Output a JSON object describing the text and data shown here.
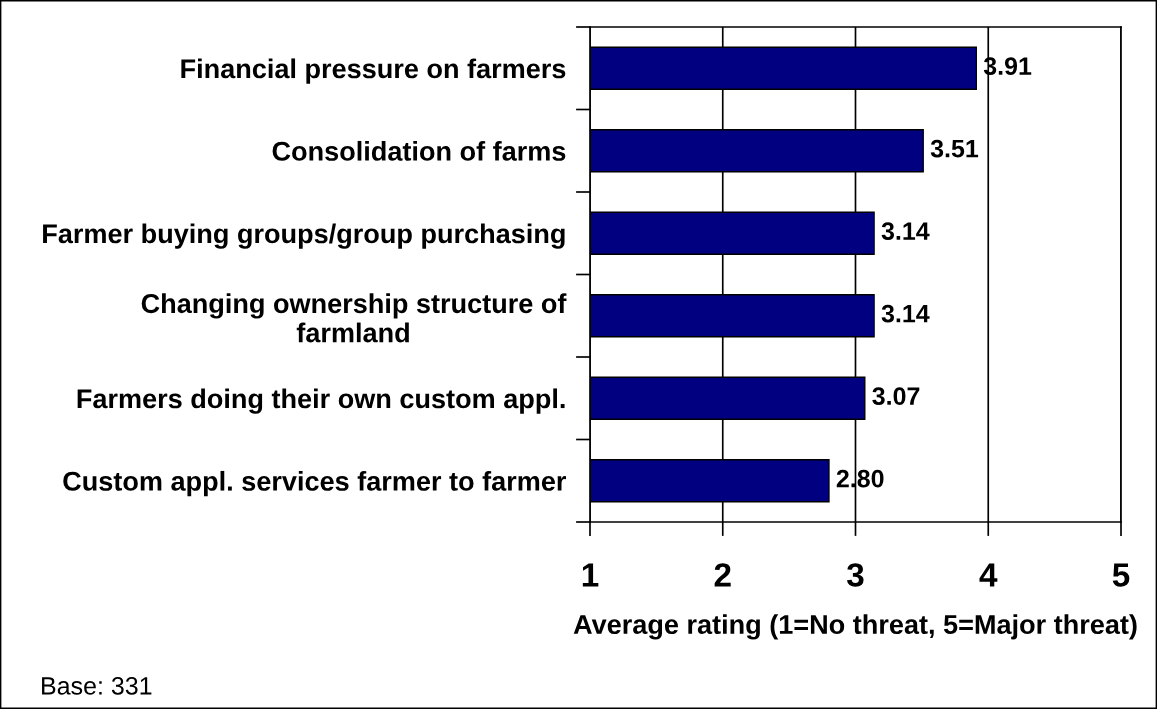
{
  "chart_data": {
    "type": "bar",
    "orientation": "horizontal",
    "categories": [
      "Financial pressure on farmers",
      "Consolidation of farms",
      "Farmer buying groups/group purchasing",
      "Changing ownership structure of\nfarmland",
      "Farmers doing their own custom appl.",
      "Custom appl. services farmer to farmer"
    ],
    "values": [
      3.91,
      3.51,
      3.14,
      3.14,
      3.07,
      2.8
    ],
    "value_labels": [
      "3.91",
      "3.51",
      "3.14",
      "3.14",
      "3.07",
      "2.80"
    ],
    "color": "#000080",
    "xlabel": "Average rating (1=No threat, 5=Major threat)",
    "xlim": [
      1,
      5
    ],
    "xticks": [
      1,
      2,
      3,
      4,
      5
    ],
    "grid": "x",
    "annotations": [
      "Base: 331"
    ]
  }
}
